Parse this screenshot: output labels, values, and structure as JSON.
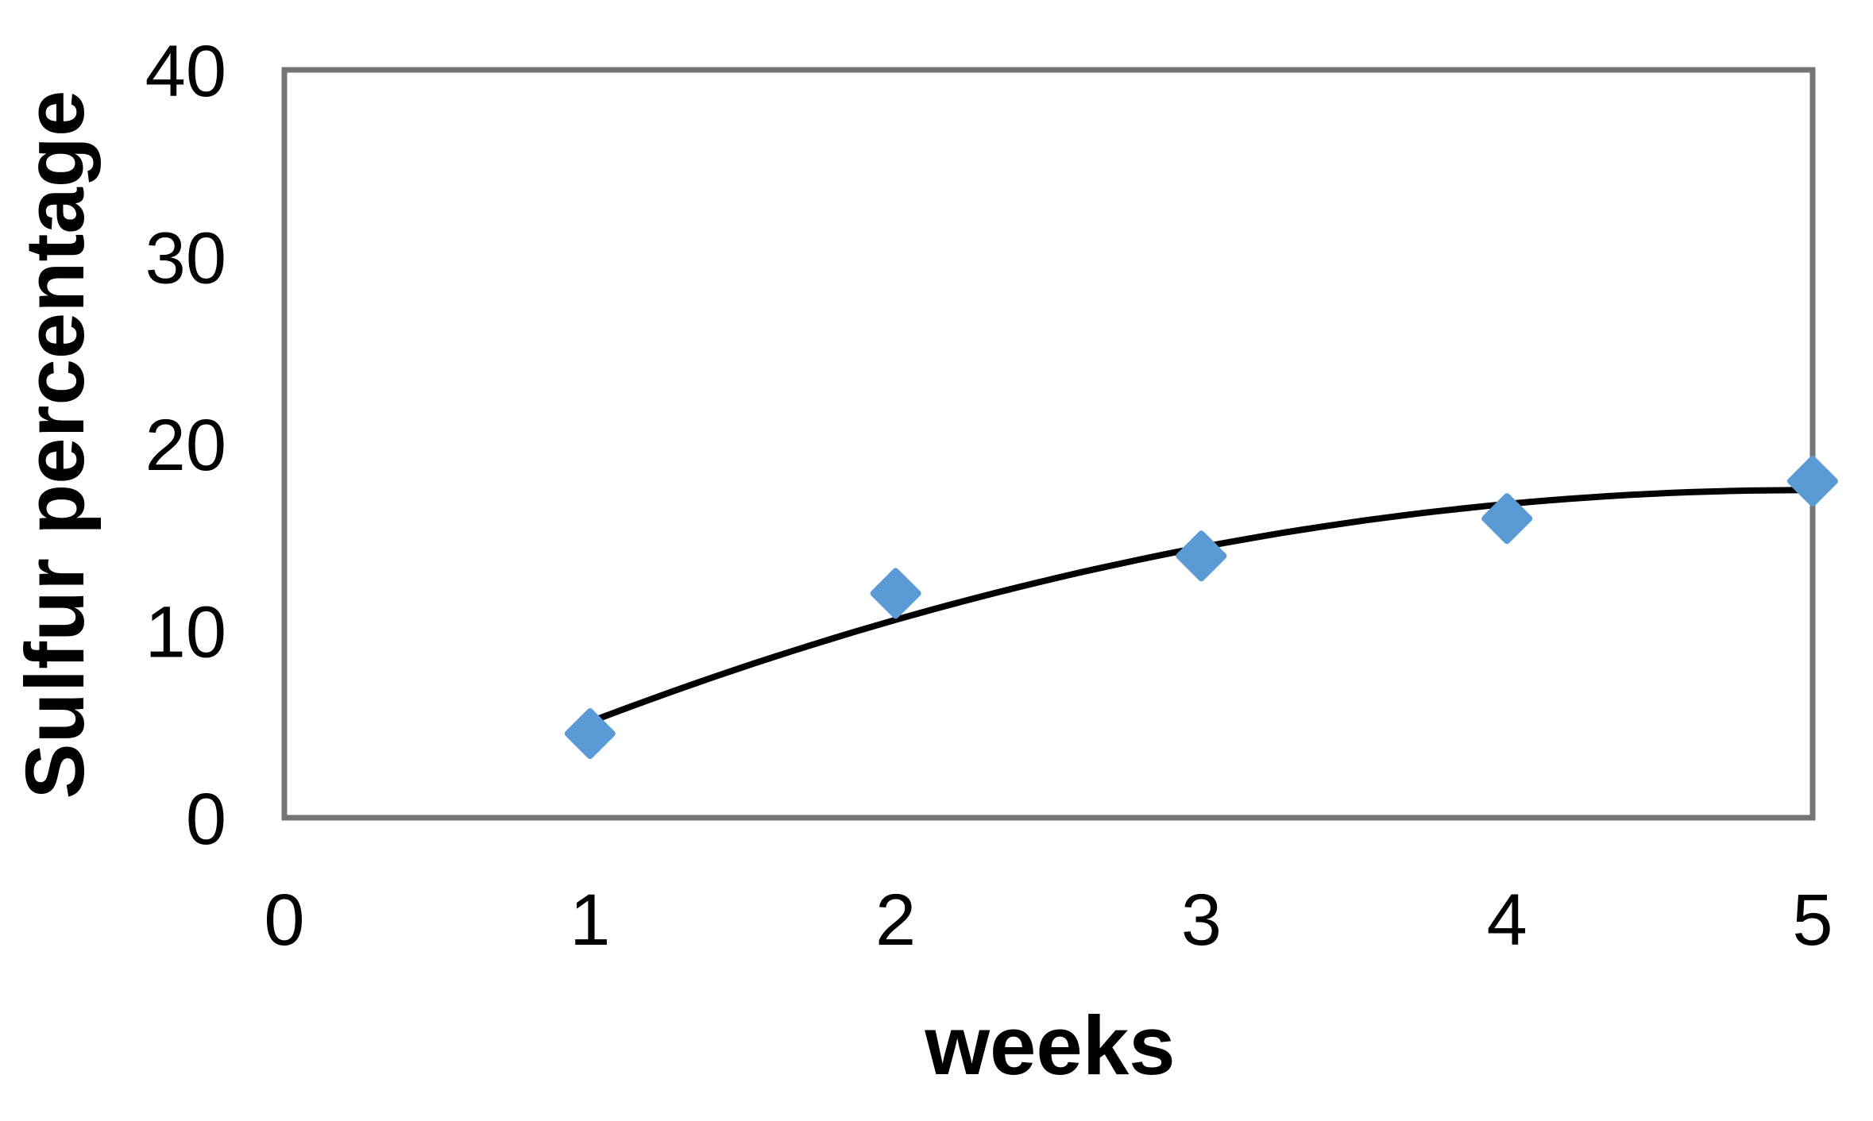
{
  "chart_data": {
    "type": "scatter",
    "title": "",
    "xlabel": "weeks",
    "ylabel": "Sulfur percentage",
    "x": [
      1,
      2,
      3,
      4,
      5
    ],
    "series": [
      {
        "name": "Sulfur percentage",
        "values": [
          4.5,
          12,
          14,
          16,
          18
        ]
      }
    ],
    "trendline": {
      "type": "polynomial",
      "order": 2,
      "coefficients": [
        -1.9,
        7.814,
        -0.786
      ],
      "x_range": [
        1,
        5
      ],
      "color": "#000000",
      "width": 8
    },
    "xlim": [
      0,
      5
    ],
    "ylim": [
      0,
      40
    ],
    "xticks": [
      0,
      1,
      2,
      3,
      4,
      5
    ],
    "yticks": [
      0,
      10,
      20,
      30,
      40
    ],
    "grid": false,
    "legend": null,
    "marker": {
      "shape": "diamond",
      "color": "#5B9BD5",
      "half_diagonal": 28
    },
    "frame_color": "#757575",
    "text_color": "#000000",
    "background_color": "#ffffff"
  }
}
